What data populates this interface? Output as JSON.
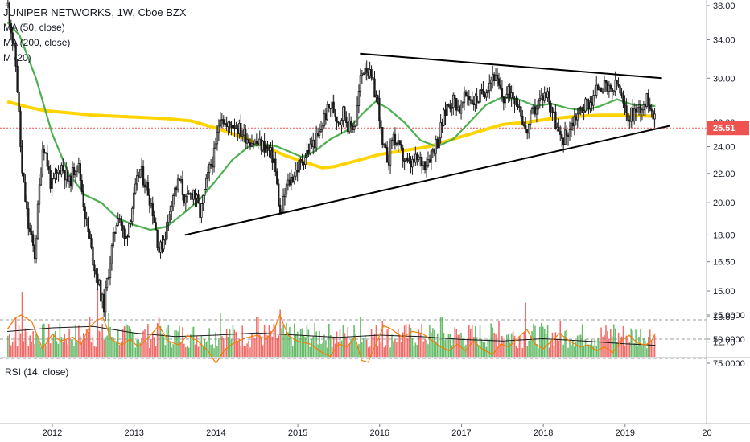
{
  "chart_data": {
    "type": "candlestick",
    "title": "JUNIPER NETWORKS, 1W, Cboe BZX",
    "indicators": [
      "MA (50, close)",
      "MA (200, close)",
      "M (20)"
    ],
    "x_ticks": [
      "2012",
      "2013",
      "2014",
      "2015",
      "2016",
      "2017",
      "2018",
      "2019",
      "20"
    ],
    "y_scale": "log",
    "y_ticks": [
      "38.00",
      "34.00",
      "30.00",
      "26.00",
      "24.00",
      "22.00",
      "20.00",
      "18.00",
      "16.50",
      "15.00",
      "13.80",
      "12.70"
    ],
    "ylim": [
      12.2,
      38.6
    ],
    "last_price": "25.51",
    "colors": {
      "up": "#26a69a",
      "candle": "#1a1a1a",
      "vol_up": "#4caf50",
      "vol_down": "#ef5350",
      "ma50": "#4caf50",
      "ma200": "#ffd400",
      "rsi": "#f57c00",
      "rsi_band": "#e8def8",
      "price_label": "#ef5350"
    },
    "price_path": [
      [
        2011.45,
        38.0
      ],
      [
        2011.55,
        31.0
      ],
      [
        2011.62,
        22.0
      ],
      [
        2011.7,
        18.5
      ],
      [
        2011.78,
        16.8
      ],
      [
        2011.88,
        24.5
      ],
      [
        2011.98,
        21.0
      ],
      [
        2012.1,
        22.6
      ],
      [
        2012.2,
        21.3
      ],
      [
        2012.3,
        23.0
      ],
      [
        2012.4,
        19.0
      ],
      [
        2012.48,
        16.8
      ],
      [
        2012.56,
        15.3
      ],
      [
        2012.62,
        14.2
      ],
      [
        2012.72,
        17.2
      ],
      [
        2012.8,
        19.5
      ],
      [
        2012.88,
        17.5
      ],
      [
        2012.98,
        20.0
      ],
      [
        2013.06,
        22.3
      ],
      [
        2013.15,
        21.0
      ],
      [
        2013.22,
        19.5
      ],
      [
        2013.3,
        17.0
      ],
      [
        2013.38,
        18.2
      ],
      [
        2013.46,
        20.5
      ],
      [
        2013.55,
        21.5
      ],
      [
        2013.62,
        20.0
      ],
      [
        2013.72,
        20.8
      ],
      [
        2013.8,
        19.2
      ],
      [
        2013.92,
        22.5
      ],
      [
        2013.98,
        23.5
      ],
      [
        2014.05,
        27.0
      ],
      [
        2014.12,
        25.5
      ],
      [
        2014.2,
        26.0
      ],
      [
        2014.3,
        25.2
      ],
      [
        2014.4,
        24.6
      ],
      [
        2014.5,
        24.2
      ],
      [
        2014.6,
        24.0
      ],
      [
        2014.7,
        23.0
      ],
      [
        2014.78,
        19.0
      ],
      [
        2014.85,
        21.0
      ],
      [
        2014.95,
        22.0
      ],
      [
        2015.05,
        23.0
      ],
      [
        2015.15,
        24.0
      ],
      [
        2015.25,
        24.8
      ],
      [
        2015.32,
        26.5
      ],
      [
        2015.4,
        27.5
      ],
      [
        2015.5,
        26.0
      ],
      [
        2015.55,
        27.0
      ],
      [
        2015.62,
        25.5
      ],
      [
        2015.7,
        26.0
      ],
      [
        2015.76,
        30.0
      ],
      [
        2015.82,
        31.5
      ],
      [
        2015.9,
        29.5
      ],
      [
        2015.98,
        27.5
      ],
      [
        2016.02,
        24.0
      ],
      [
        2016.1,
        23.0
      ],
      [
        2016.15,
        25.0
      ],
      [
        2016.25,
        23.5
      ],
      [
        2016.35,
        22.5
      ],
      [
        2016.45,
        23.0
      ],
      [
        2016.55,
        22.8
      ],
      [
        2016.62,
        23.5
      ],
      [
        2016.7,
        24.5
      ],
      [
        2016.76,
        26.0
      ],
      [
        2016.82,
        27.5
      ],
      [
        2016.9,
        28.0
      ],
      [
        2016.98,
        27.0
      ],
      [
        2017.05,
        28.5
      ],
      [
        2017.15,
        27.8
      ],
      [
        2017.25,
        28.5
      ],
      [
        2017.32,
        29.5
      ],
      [
        2017.38,
        30.5
      ],
      [
        2017.45,
        29.0
      ],
      [
        2017.5,
        28.0
      ],
      [
        2017.6,
        28.8
      ],
      [
        2017.7,
        27.5
      ],
      [
        2017.78,
        25.0
      ],
      [
        2017.85,
        26.5
      ],
      [
        2017.92,
        27.5
      ],
      [
        2018.0,
        28.5
      ],
      [
        2018.05,
        28.5
      ],
      [
        2018.12,
        26.5
      ],
      [
        2018.2,
        24.5
      ],
      [
        2018.28,
        25.0
      ],
      [
        2018.38,
        26.5
      ],
      [
        2018.5,
        27.5
      ],
      [
        2018.6,
        28.0
      ],
      [
        2018.68,
        29.5
      ],
      [
        2018.75,
        29.0
      ],
      [
        2018.82,
        28.5
      ],
      [
        2018.9,
        29.5
      ],
      [
        2018.98,
        27.0
      ],
      [
        2019.05,
        26.5
      ],
      [
        2019.12,
        27.0
      ],
      [
        2019.2,
        27.5
      ],
      [
        2019.28,
        28.0
      ],
      [
        2019.33,
        27.0
      ],
      [
        2019.37,
        25.51
      ]
    ],
    "ma50_line": [
      [
        2011.45,
        36.0
      ],
      [
        2011.6,
        34.5
      ],
      [
        2011.8,
        30.0
      ],
      [
        2012.0,
        25.0
      ],
      [
        2012.2,
        22.0
      ],
      [
        2012.4,
        20.5
      ],
      [
        2012.6,
        20.0
      ],
      [
        2012.8,
        19.0
      ],
      [
        2013.0,
        18.6
      ],
      [
        2013.2,
        18.3
      ],
      [
        2013.4,
        18.5
      ],
      [
        2013.6,
        19.3
      ],
      [
        2013.8,
        20.2
      ],
      [
        2014.0,
        21.5
      ],
      [
        2014.2,
        23.0
      ],
      [
        2014.4,
        24.0
      ],
      [
        2014.6,
        24.2
      ],
      [
        2014.75,
        24.0
      ],
      [
        2014.9,
        23.6
      ],
      [
        2015.05,
        23.2
      ],
      [
        2015.2,
        23.6
      ],
      [
        2015.4,
        24.6
      ],
      [
        2015.6,
        25.3
      ],
      [
        2015.8,
        26.8
      ],
      [
        2015.95,
        27.8
      ],
      [
        2016.1,
        27.2
      ],
      [
        2016.3,
        26.0
      ],
      [
        2016.5,
        24.5
      ],
      [
        2016.7,
        24.0
      ],
      [
        2016.9,
        24.6
      ],
      [
        2017.1,
        26.0
      ],
      [
        2017.3,
        27.5
      ],
      [
        2017.5,
        28.2
      ],
      [
        2017.7,
        28.0
      ],
      [
        2017.9,
        27.4
      ],
      [
        2018.1,
        27.6
      ],
      [
        2018.3,
        27.2
      ],
      [
        2018.5,
        27.0
      ],
      [
        2018.7,
        27.4
      ],
      [
        2018.9,
        28.0
      ],
      [
        2019.1,
        27.5
      ],
      [
        2019.37,
        27.4
      ]
    ],
    "ma200_line": [
      [
        2011.45,
        27.8
      ],
      [
        2011.7,
        27.3
      ],
      [
        2011.9,
        27.0
      ],
      [
        2012.2,
        26.8
      ],
      [
        2012.5,
        26.6
      ],
      [
        2012.8,
        26.5
      ],
      [
        2013.1,
        26.4
      ],
      [
        2013.4,
        26.3
      ],
      [
        2013.7,
        26.1
      ],
      [
        2014.0,
        25.5
      ],
      [
        2014.3,
        24.8
      ],
      [
        2014.6,
        24.0
      ],
      [
        2014.85,
        23.3
      ],
      [
        2015.1,
        22.8
      ],
      [
        2015.3,
        22.4
      ],
      [
        2015.45,
        22.5
      ],
      [
        2015.7,
        22.9
      ],
      [
        2016.0,
        23.4
      ],
      [
        2016.3,
        23.7
      ],
      [
        2016.6,
        24.0
      ],
      [
        2016.9,
        24.6
      ],
      [
        2017.2,
        25.2
      ],
      [
        2017.5,
        25.8
      ],
      [
        2017.8,
        26.0
      ],
      [
        2018.1,
        26.3
      ],
      [
        2018.4,
        26.5
      ],
      [
        2018.7,
        26.6
      ],
      [
        2019.0,
        26.6
      ],
      [
        2019.37,
        26.5
      ]
    ],
    "trendlines": [
      {
        "name": "resistance",
        "from": [
          2015.76,
          32.5
        ],
        "to": [
          2019.45,
          30.0
        ]
      },
      {
        "name": "support",
        "from": [
          2013.62,
          18.0
        ],
        "to": [
          2019.55,
          25.7
        ]
      }
    ],
    "volume_spikes": [
      [
        2011.55,
        0.55
      ],
      [
        2011.62,
        0.9
      ],
      [
        2012.45,
        0.55
      ],
      [
        2012.55,
        0.95
      ],
      [
        2012.68,
        0.6
      ],
      [
        2013.3,
        0.55
      ],
      [
        2014.05,
        0.6
      ],
      [
        2014.5,
        0.55
      ],
      [
        2014.78,
        0.65
      ],
      [
        2015.76,
        0.55
      ],
      [
        2016.02,
        0.5
      ],
      [
        2016.75,
        0.55
      ],
      [
        2017.45,
        0.5
      ],
      [
        2017.78,
        0.75
      ],
      [
        2018.2,
        0.5
      ],
      [
        2018.85,
        0.45
      ]
    ],
    "volume_ma": [
      [
        2011.45,
        0.35
      ],
      [
        2012.0,
        0.4
      ],
      [
        2012.5,
        0.42
      ],
      [
        2013.0,
        0.33
      ],
      [
        2013.5,
        0.28
      ],
      [
        2014.0,
        0.3
      ],
      [
        2014.5,
        0.33
      ],
      [
        2015.0,
        0.3
      ],
      [
        2015.5,
        0.27
      ],
      [
        2016.0,
        0.3
      ],
      [
        2016.5,
        0.28
      ],
      [
        2017.0,
        0.24
      ],
      [
        2017.5,
        0.22
      ],
      [
        2018.0,
        0.25
      ],
      [
        2018.5,
        0.22
      ],
      [
        2019.0,
        0.18
      ],
      [
        2019.37,
        0.16
      ]
    ],
    "rsi": {
      "label": "RSI (14, close)",
      "ticks": [
        "75.0000",
        "50.0000",
        "25.0000"
      ],
      "range": [
        25,
        75
      ],
      "band": [
        30,
        70
      ],
      "values": [
        [
          2011.45,
          40
        ],
        [
          2011.55,
          28
        ],
        [
          2011.62,
          25
        ],
        [
          2011.75,
          32
        ],
        [
          2011.88,
          60
        ],
        [
          2012.0,
          45
        ],
        [
          2012.1,
          52
        ],
        [
          2012.25,
          48
        ],
        [
          2012.35,
          55
        ],
        [
          2012.45,
          38
        ],
        [
          2012.55,
          30
        ],
        [
          2012.62,
          28
        ],
        [
          2012.72,
          50
        ],
        [
          2012.85,
          56
        ],
        [
          2012.95,
          50
        ],
        [
          2013.05,
          58
        ],
        [
          2013.18,
          48
        ],
        [
          2013.3,
          36
        ],
        [
          2013.42,
          52
        ],
        [
          2013.55,
          56
        ],
        [
          2013.65,
          46
        ],
        [
          2013.78,
          52
        ],
        [
          2013.9,
          62
        ],
        [
          2014.0,
          75
        ],
        [
          2014.1,
          62
        ],
        [
          2014.2,
          55
        ],
        [
          2014.35,
          49
        ],
        [
          2014.5,
          46
        ],
        [
          2014.62,
          50
        ],
        [
          2014.72,
          38
        ],
        [
          2014.78,
          25
        ],
        [
          2014.88,
          46
        ],
        [
          2015.0,
          52
        ],
        [
          2015.15,
          55
        ],
        [
          2015.3,
          64
        ],
        [
          2015.4,
          68
        ],
        [
          2015.5,
          55
        ],
        [
          2015.6,
          58
        ],
        [
          2015.7,
          48
        ],
        [
          2015.78,
          72
        ],
        [
          2015.86,
          74
        ],
        [
          2015.95,
          56
        ],
        [
          2016.05,
          36
        ],
        [
          2016.15,
          40
        ],
        [
          2016.28,
          48
        ],
        [
          2016.4,
          42
        ],
        [
          2016.52,
          44
        ],
        [
          2016.65,
          52
        ],
        [
          2016.75,
          58
        ],
        [
          2016.85,
          62
        ],
        [
          2016.95,
          55
        ],
        [
          2017.05,
          62
        ],
        [
          2017.15,
          52
        ],
        [
          2017.25,
          60
        ],
        [
          2017.38,
          66
        ],
        [
          2017.48,
          55
        ],
        [
          2017.58,
          58
        ],
        [
          2017.7,
          48
        ],
        [
          2017.8,
          40
        ],
        [
          2017.9,
          55
        ],
        [
          2018.0,
          60
        ],
        [
          2018.1,
          52
        ],
        [
          2018.2,
          44
        ],
        [
          2018.32,
          52
        ],
        [
          2018.45,
          58
        ],
        [
          2018.55,
          56
        ],
        [
          2018.65,
          62
        ],
        [
          2018.75,
          58
        ],
        [
          2018.85,
          64
        ],
        [
          2018.95,
          52
        ],
        [
          2019.05,
          46
        ],
        [
          2019.15,
          54
        ],
        [
          2019.25,
          56
        ],
        [
          2019.32,
          52
        ],
        [
          2019.37,
          44
        ]
      ]
    }
  }
}
